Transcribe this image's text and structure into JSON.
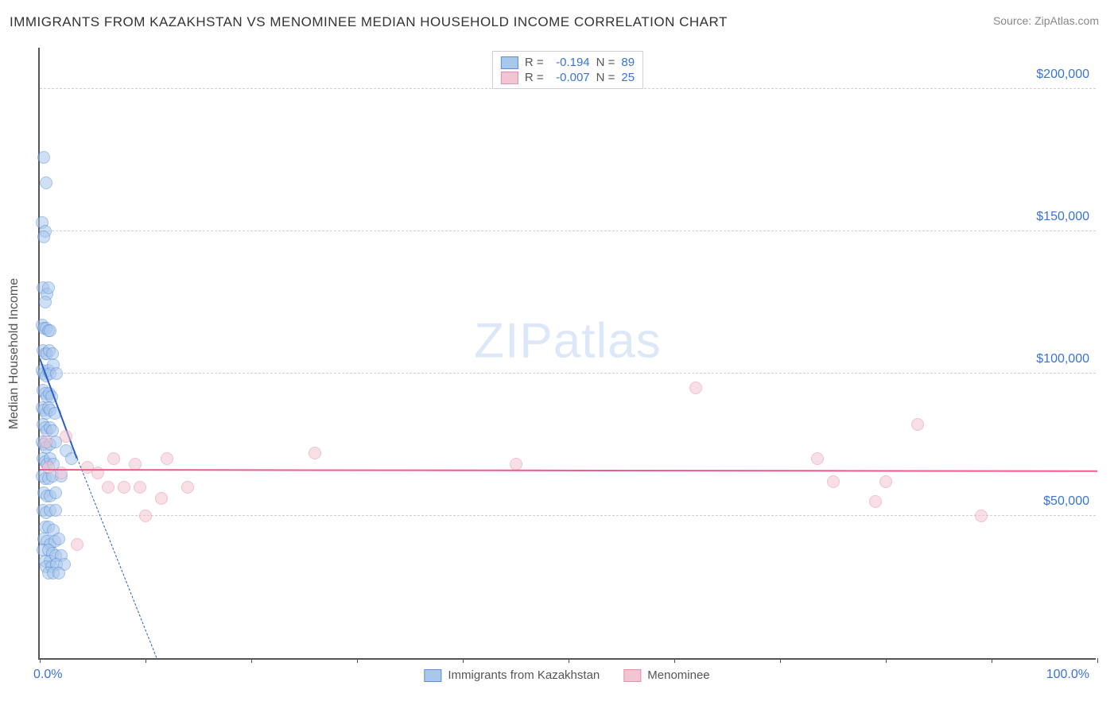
{
  "title": "IMMIGRANTS FROM KAZAKHSTAN VS MENOMINEE MEDIAN HOUSEHOLD INCOME CORRELATION CHART",
  "source": "Source: ZipAtlas.com",
  "watermark_bold": "ZIP",
  "watermark_thin": "atlas",
  "chart": {
    "type": "scatter",
    "x_axis": {
      "min": 0,
      "max": 100,
      "label_min": "0.0%",
      "label_max": "100.0%",
      "ticks": [
        0,
        10,
        20,
        30,
        40,
        50,
        60,
        70,
        80,
        90,
        100
      ]
    },
    "y_axis": {
      "min": 0,
      "max": 215000,
      "label": "Median Household Income",
      "gridlines": [
        50000,
        100000,
        150000,
        200000
      ],
      "tick_labels": [
        "$50,000",
        "$100,000",
        "$150,000",
        "$200,000"
      ]
    },
    "background_color": "#ffffff",
    "grid_color": "#d0d0d0",
    "series": [
      {
        "name": "Immigrants from Kazakhstan",
        "fill_color": "#a9c7ec",
        "stroke_color": "#5b8fd6",
        "fill_opacity": 0.55,
        "marker_radius": 8,
        "R": "-0.194",
        "N": "89",
        "trendline": {
          "color": "#2b5fc0",
          "x1": 0,
          "y1": 105000,
          "x2": 3.5,
          "y2": 70000,
          "dash_extend_y": 0,
          "dash_extend_x": 11
        },
        "points": [
          [
            0.4,
            176000
          ],
          [
            0.6,
            167000
          ],
          [
            0.2,
            153000
          ],
          [
            0.5,
            150000
          ],
          [
            0.4,
            148000
          ],
          [
            0.3,
            130000
          ],
          [
            0.7,
            128000
          ],
          [
            0.5,
            125000
          ],
          [
            0.8,
            130000
          ],
          [
            0.2,
            117000
          ],
          [
            0.4,
            116000
          ],
          [
            0.6,
            116000
          ],
          [
            0.8,
            115000
          ],
          [
            1.0,
            115000
          ],
          [
            0.3,
            108000
          ],
          [
            0.5,
            107000
          ],
          [
            0.7,
            107000
          ],
          [
            0.9,
            108000
          ],
          [
            1.2,
            107000
          ],
          [
            0.2,
            101000
          ],
          [
            0.4,
            100000
          ],
          [
            0.6,
            99000
          ],
          [
            0.8,
            101000
          ],
          [
            1.0,
            100000
          ],
          [
            1.3,
            103000
          ],
          [
            1.6,
            100000
          ],
          [
            0.3,
            94000
          ],
          [
            0.5,
            93000
          ],
          [
            0.7,
            92000
          ],
          [
            0.9,
            93000
          ],
          [
            1.1,
            92000
          ],
          [
            0.2,
            88000
          ],
          [
            0.4,
            87000
          ],
          [
            0.6,
            86000
          ],
          [
            0.8,
            88000
          ],
          [
            1.0,
            87000
          ],
          [
            1.4,
            86000
          ],
          [
            0.3,
            82000
          ],
          [
            0.5,
            81000
          ],
          [
            0.7,
            80000
          ],
          [
            1.0,
            81000
          ],
          [
            1.2,
            80000
          ],
          [
            0.2,
            76000
          ],
          [
            0.4,
            75000
          ],
          [
            0.6,
            74000
          ],
          [
            1.0,
            75000
          ],
          [
            1.5,
            76000
          ],
          [
            2.5,
            73000
          ],
          [
            0.3,
            70000
          ],
          [
            0.5,
            69000
          ],
          [
            0.7,
            68000
          ],
          [
            1.0,
            70000
          ],
          [
            1.3,
            68000
          ],
          [
            0.2,
            64000
          ],
          [
            0.5,
            63000
          ],
          [
            0.8,
            63000
          ],
          [
            1.2,
            64000
          ],
          [
            2.0,
            64000
          ],
          [
            3.0,
            70000
          ],
          [
            0.4,
            58000
          ],
          [
            0.7,
            57000
          ],
          [
            1.0,
            57000
          ],
          [
            1.5,
            58000
          ],
          [
            0.3,
            52000
          ],
          [
            0.6,
            51000
          ],
          [
            1.0,
            52000
          ],
          [
            1.5,
            52000
          ],
          [
            0.5,
            46000
          ],
          [
            0.8,
            46000
          ],
          [
            1.3,
            45000
          ],
          [
            0.4,
            42000
          ],
          [
            0.7,
            41000
          ],
          [
            1.0,
            40000
          ],
          [
            1.4,
            41000
          ],
          [
            1.8,
            42000
          ],
          [
            0.3,
            38000
          ],
          [
            0.8,
            38000
          ],
          [
            1.2,
            37000
          ],
          [
            0.5,
            34000
          ],
          [
            1.0,
            34000
          ],
          [
            1.5,
            36000
          ],
          [
            2.0,
            36000
          ],
          [
            0.6,
            32000
          ],
          [
            1.1,
            32000
          ],
          [
            1.6,
            33000
          ],
          [
            2.3,
            33000
          ],
          [
            0.8,
            30000
          ],
          [
            1.3,
            30000
          ],
          [
            1.8,
            30000
          ]
        ]
      },
      {
        "name": "Menominee",
        "fill_color": "#f3c5d3",
        "stroke_color": "#e58fab",
        "fill_opacity": 0.55,
        "marker_radius": 8,
        "R": "-0.007",
        "N": "25",
        "trendline": {
          "color": "#f05b8a",
          "x1": 0,
          "y1": 66000,
          "x2": 100,
          "y2": 65500
        },
        "points": [
          [
            0.6,
            76000
          ],
          [
            2.5,
            78000
          ],
          [
            0.8,
            67000
          ],
          [
            2.0,
            65000
          ],
          [
            4.5,
            67000
          ],
          [
            5.5,
            65000
          ],
          [
            7.0,
            70000
          ],
          [
            9.0,
            68000
          ],
          [
            12.0,
            70000
          ],
          [
            6.5,
            60000
          ],
          [
            8.0,
            60000
          ],
          [
            9.5,
            60000
          ],
          [
            14.0,
            60000
          ],
          [
            10.0,
            50000
          ],
          [
            11.5,
            56000
          ],
          [
            3.5,
            40000
          ],
          [
            26.0,
            72000
          ],
          [
            45.0,
            68000
          ],
          [
            62.0,
            95000
          ],
          [
            73.5,
            70000
          ],
          [
            75.0,
            62000
          ],
          [
            79.0,
            55000
          ],
          [
            80.0,
            62000
          ],
          [
            83.0,
            82000
          ],
          [
            89.0,
            50000
          ]
        ]
      }
    ]
  },
  "legend_top": {
    "r_label": "R =",
    "n_label": "N ="
  },
  "colors": {
    "title": "#333333",
    "source": "#888888",
    "axis_text": "#555555",
    "value_text": "#3874d6"
  }
}
